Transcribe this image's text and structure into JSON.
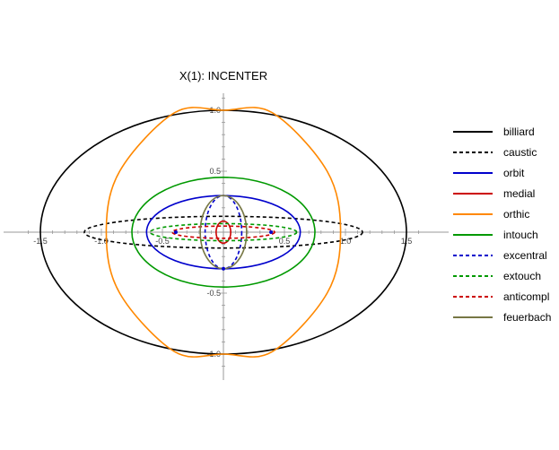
{
  "chart_data": {
    "type": "line",
    "title": "X(1): INCENTER",
    "xlabel": "",
    "ylabel": "",
    "xlim": [
      -1.65,
      1.65
    ],
    "ylim": [
      -1.2,
      1.2
    ],
    "grid": false,
    "legend_position": "right",
    "x_ticks": [
      {
        "value": -1.5,
        "label": "-1.5"
      },
      {
        "value": -1.0,
        "label": "-1.0"
      },
      {
        "value": -0.5,
        "label": "-0.5"
      },
      {
        "value": 0.5,
        "label": "0.5"
      },
      {
        "value": 1.0,
        "label": "1.0"
      },
      {
        "value": 1.5,
        "label": "1.5"
      }
    ],
    "y_ticks": [
      {
        "value": 1.0,
        "label": "1.0"
      },
      {
        "value": 0.5,
        "label": "0.5"
      },
      {
        "value": -0.5,
        "label": "-0.5"
      },
      {
        "value": -1.0,
        "label": "-1.0"
      }
    ],
    "series": [
      {
        "name": "billiard",
        "color": "#000000",
        "dash": "solid",
        "shape": "ellipse",
        "cx": 0,
        "cy": 0,
        "rx": 1.5,
        "ry": 1.0
      },
      {
        "name": "caustic",
        "color": "#000000",
        "dash": "dashed",
        "shape": "ellipse",
        "cx": 0,
        "cy": 0,
        "rx": 1.14,
        "ry": 0.13
      },
      {
        "name": "orbit",
        "color": "#0000cc",
        "dash": "solid",
        "shape": "ellipse",
        "cx": 0,
        "cy": 0,
        "rx": 0.63,
        "ry": 0.3
      },
      {
        "name": "medial",
        "color": "#cc0000",
        "dash": "solid",
        "shape": "ellipse",
        "cx": 0,
        "cy": 0,
        "rx": 0.06,
        "ry": 0.09
      },
      {
        "name": "orthic",
        "color": "#ff8800",
        "dash": "solid",
        "shape": "quartic",
        "points": [
          [
            -0.96,
            0
          ],
          [
            -0.85,
            0.5
          ],
          [
            -0.4,
            0.98
          ],
          [
            0,
            1.0
          ],
          [
            0.4,
            0.98
          ],
          [
            0.85,
            0.5
          ],
          [
            0.96,
            0
          ],
          [
            0.85,
            -0.5
          ],
          [
            0.4,
            -0.98
          ],
          [
            0,
            -1.0
          ],
          [
            -0.4,
            -0.98
          ],
          [
            -0.85,
            -0.5
          ]
        ]
      },
      {
        "name": "intouch",
        "color": "#009900",
        "dash": "solid",
        "shape": "ellipse",
        "cx": 0,
        "cy": 0,
        "rx": 0.75,
        "ry": 0.45
      },
      {
        "name": "excentral",
        "color": "#0000cc",
        "dash": "dashed",
        "shape": "ellipse",
        "cx": 0,
        "cy": 0,
        "rx": 0.15,
        "ry": 0.3
      },
      {
        "name": "extouch",
        "color": "#009900",
        "dash": "dashed",
        "shape": "ellipse",
        "cx": 0,
        "cy": 0,
        "rx": 0.6,
        "ry": 0.07
      },
      {
        "name": "anticompl",
        "color": "#cc0000",
        "dash": "dashed",
        "shape": "ellipse",
        "cx": 0,
        "cy": 0,
        "rx": 0.42,
        "ry": 0.05
      },
      {
        "name": "feuerbach",
        "color": "#777744",
        "dash": "solid",
        "shape": "ellipse",
        "cx": 0,
        "cy": 0,
        "rx": 0.19,
        "ry": 0.3
      }
    ]
  }
}
